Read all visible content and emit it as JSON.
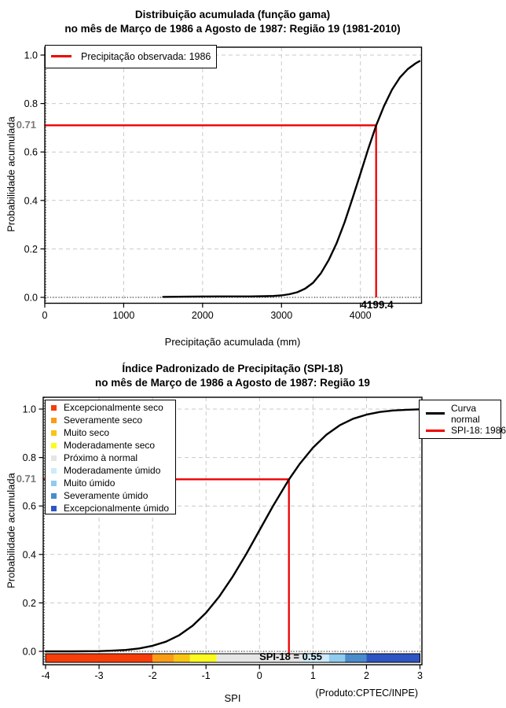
{
  "chart_data": [
    {
      "type": "line",
      "title": "Distribuição acumulada (função gama)",
      "subtitle": "no mês de Março de 1986 a Agosto de 1987: Região 19 (1981-2010)",
      "xlabel": "Precipitação acumulada (mm)",
      "ylabel": "Probabilidade acumulada",
      "xlim": [
        0,
        4750
      ],
      "ylim": [
        0,
        1.0
      ],
      "grid": true,
      "legend_position": "top-left",
      "x_ticks": [
        "0",
        "1000",
        "2000",
        "3000",
        "4000"
      ],
      "x_tick_values": [
        0,
        1000,
        2000,
        3000,
        4000
      ],
      "y_ticks": [
        "0.0",
        "0.2",
        "0.4",
        "0.6",
        "0.8",
        "1.0"
      ],
      "y_tick_values": [
        0,
        0.2,
        0.4,
        0.6,
        0.8,
        1.0
      ],
      "legend": [
        {
          "label": "Precipitação observada: 1986",
          "color": "#ee0000"
        }
      ],
      "series": [
        {
          "name": "Distribuição gama acumulada",
          "color": "#000000",
          "points": [
            [
              1500,
              0.002
            ],
            [
              1800,
              0.003
            ],
            [
              2200,
              0.004
            ],
            [
              2600,
              0.004
            ],
            [
              2800,
              0.005
            ],
            [
              2900,
              0.006
            ],
            [
              3000,
              0.008
            ],
            [
              3100,
              0.013
            ],
            [
              3200,
              0.021
            ],
            [
              3300,
              0.036
            ],
            [
              3400,
              0.06
            ],
            [
              3500,
              0.1
            ],
            [
              3600,
              0.155
            ],
            [
              3700,
              0.225
            ],
            [
              3800,
              0.31
            ],
            [
              3900,
              0.408
            ],
            [
              4000,
              0.51
            ],
            [
              4100,
              0.613
            ],
            [
              4199.4,
              0.709
            ],
            [
              4300,
              0.79
            ],
            [
              4400,
              0.857
            ],
            [
              4500,
              0.907
            ],
            [
              4600,
              0.942
            ],
            [
              4700,
              0.966
            ],
            [
              4750,
              0.975
            ]
          ]
        }
      ],
      "marker": {
        "x": 4199.4,
        "y": 0.71,
        "x_label": "4199.4",
        "y_label": "0.71",
        "color": "#ee0000"
      }
    },
    {
      "type": "line",
      "title": "Índice Padronizado de Precipitação (SPI-18)",
      "subtitle": "no mês de Março de 1986 a Agosto de 1987: Região 19",
      "xlabel": "SPI",
      "ylabel": "Probabilidade acumulada",
      "credit": "(Produto:CPTEC/INPE)",
      "xlim": [
        -4,
        3
      ],
      "ylim": [
        0,
        1.0
      ],
      "grid": true,
      "x_ticks": [
        "-4",
        "-3",
        "-2",
        "-1",
        "0",
        "1",
        "2",
        "3"
      ],
      "x_tick_values": [
        -4,
        -3,
        -2,
        -1,
        0,
        1,
        2,
        3
      ],
      "y_ticks": [
        "0.0",
        "0.2",
        "0.4",
        "0.6",
        "0.8",
        "1.0"
      ],
      "y_tick_values": [
        0,
        0.2,
        0.4,
        0.6,
        0.8,
        1.0
      ],
      "legend": [
        {
          "label_lines": [
            "Curva",
            "normal"
          ],
          "color": "#000000"
        },
        {
          "label_lines": [
            "SPI-18: 1986"
          ],
          "color": "#ee0000"
        }
      ],
      "categories": [
        {
          "label": "Excepcionalmente seco",
          "color": "#f73d0a",
          "range": [
            -4,
            -2
          ]
        },
        {
          "label": "Severamente seco",
          "color": "#fa9c16",
          "range": [
            -2,
            -1.6
          ]
        },
        {
          "label": "Muito seco",
          "color": "#f8c513",
          "range": [
            -1.6,
            -1.3
          ]
        },
        {
          "label": "Moderadamente seco",
          "color": "#fbfb1f",
          "range": [
            -1.3,
            -0.8
          ]
        },
        {
          "label": "Próximo à normal",
          "color": "#e5e5e5",
          "range": [
            -0.8,
            0.8
          ]
        },
        {
          "label": "Moderadamente úmido",
          "color": "#cfeaf8",
          "range": [
            0.8,
            1.3
          ]
        },
        {
          "label": "Muito úmido",
          "color": "#8fccee",
          "range": [
            1.3,
            1.6
          ]
        },
        {
          "label": "Severamente úmido",
          "color": "#4a8ccc",
          "range": [
            1.6,
            2
          ]
        },
        {
          "label": "Excepcionalmente úmido",
          "color": "#2f55c4",
          "range": [
            2,
            3
          ]
        }
      ],
      "series": [
        {
          "name": "Curva normal",
          "color": "#000000",
          "points": [
            [
              -4,
              0
            ],
            [
              -3.5,
              0
            ],
            [
              -3,
              0.001
            ],
            [
              -2.75,
              0.003
            ],
            [
              -2.5,
              0.006
            ],
            [
              -2.25,
              0.012
            ],
            [
              -2,
              0.023
            ],
            [
              -1.75,
              0.04
            ],
            [
              -1.5,
              0.067
            ],
            [
              -1.25,
              0.106
            ],
            [
              -1,
              0.159
            ],
            [
              -0.75,
              0.227
            ],
            [
              -0.5,
              0.309
            ],
            [
              -0.25,
              0.401
            ],
            [
              0,
              0.5
            ],
            [
              0.25,
              0.599
            ],
            [
              0.5,
              0.691
            ],
            [
              0.55,
              0.709
            ],
            [
              0.75,
              0.773
            ],
            [
              1,
              0.841
            ],
            [
              1.25,
              0.894
            ],
            [
              1.5,
              0.933
            ],
            [
              1.75,
              0.96
            ],
            [
              2,
              0.977
            ],
            [
              2.25,
              0.988
            ],
            [
              2.5,
              0.994
            ],
            [
              2.75,
              0.997
            ],
            [
              3,
              0.999
            ]
          ]
        }
      ],
      "marker": {
        "x": 0.55,
        "y": 0.71,
        "bar_label": "SPI-18 = 0.55",
        "y_label": "0.71",
        "color": "#ee0000"
      }
    }
  ]
}
